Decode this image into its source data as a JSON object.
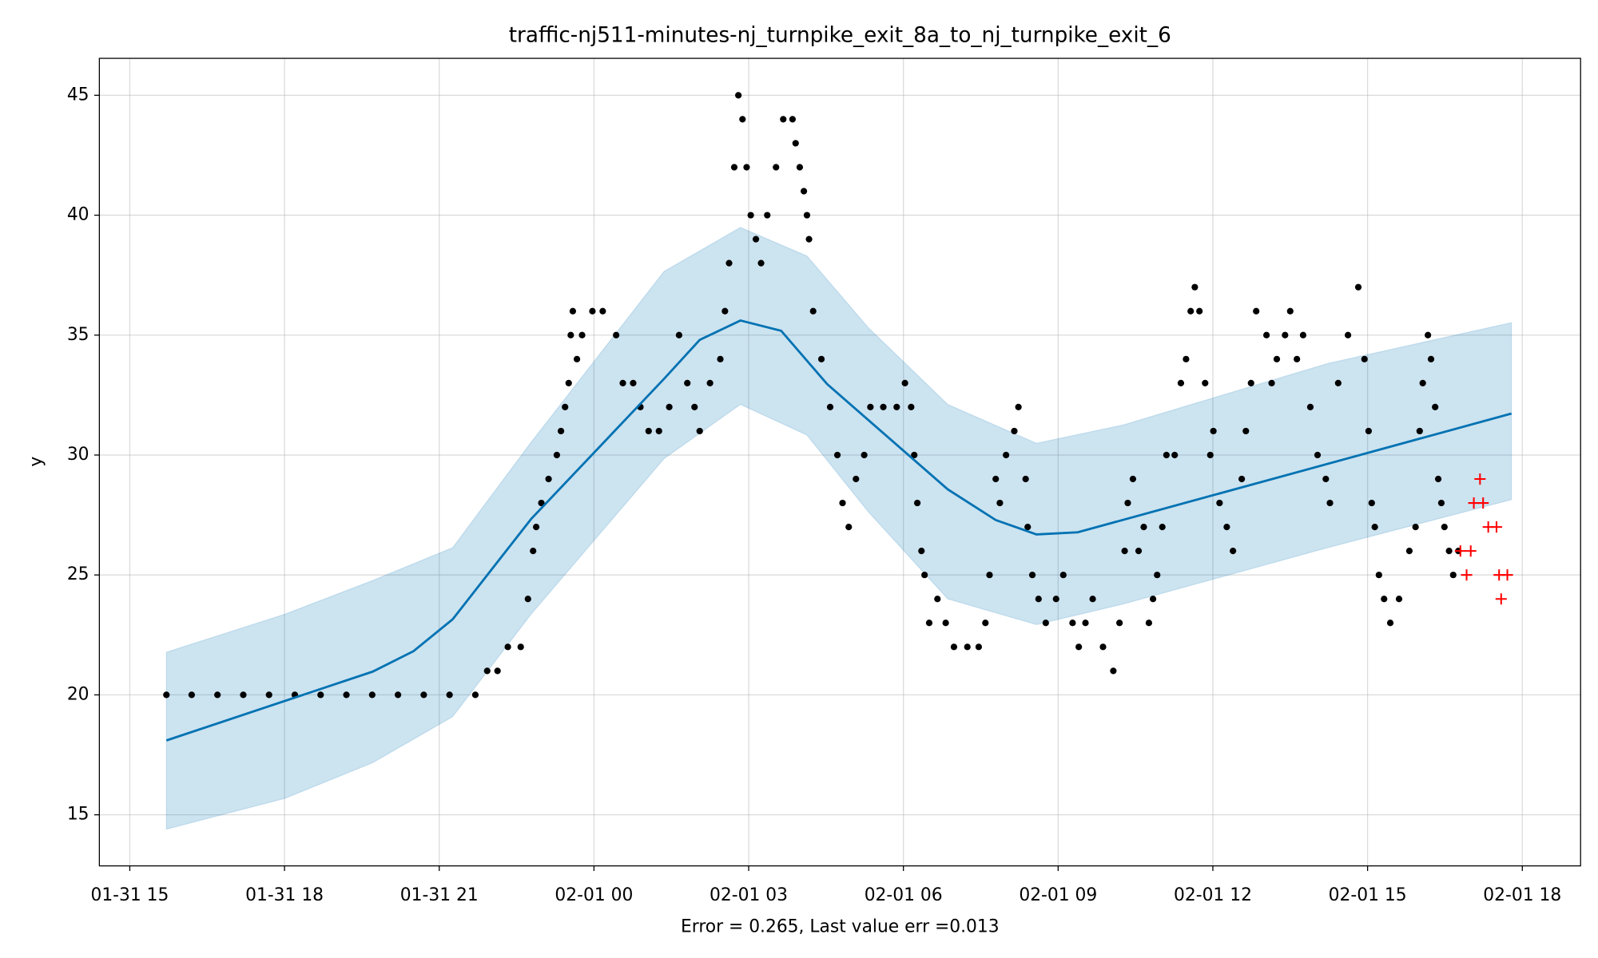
{
  "chart_data": {
    "type": "line",
    "title": "traffic-nj511-minutes-nj_turnpike_exit_8a_to_nj_turnpike_exit_6",
    "xlabel": "Error = 0.265, Last value err =0.013",
    "ylabel": "y",
    "grid": true,
    "xlim": [
      14.41,
      43.13
    ],
    "ylim": [
      12.87,
      46.54
    ],
    "xticks": [
      {
        "value": 15,
        "label": "01-31 15"
      },
      {
        "value": 18,
        "label": "01-31 18"
      },
      {
        "value": 21,
        "label": "01-31 21"
      },
      {
        "value": 24,
        "label": "02-01 00"
      },
      {
        "value": 27,
        "label": "02-01 03"
      },
      {
        "value": 30,
        "label": "02-01 06"
      },
      {
        "value": 33,
        "label": "02-01 09"
      },
      {
        "value": 36,
        "label": "02-01 12"
      },
      {
        "value": 39,
        "label": "02-01 15"
      },
      {
        "value": 42,
        "label": "02-01 18"
      }
    ],
    "yticks": [
      15,
      20,
      25,
      30,
      35,
      40,
      45
    ],
    "band": {
      "color": "#0072b2",
      "x": [
        15.71,
        18,
        19.71,
        21.26,
        22.78,
        25.36,
        26.84,
        28.13,
        29.32,
        30.86,
        32.58,
        34.27,
        38.23,
        41.79
      ],
      "upper": [
        21.78,
        23.36,
        24.77,
        26.14,
        30.53,
        37.66,
        39.49,
        38.3,
        35.31,
        32.11,
        30.49,
        31.26,
        33.82,
        35.52
      ],
      "lower": [
        14.4,
        15.68,
        17.17,
        19.09,
        23.36,
        29.85,
        32.11,
        30.83,
        27.63,
        24.0,
        22.93,
        23.79,
        26.14,
        28.14
      ]
    },
    "forecast": {
      "color": "#0072b2",
      "x": [
        15.71,
        19.71,
        20.5,
        21.26,
        22.78,
        25.36,
        26.05,
        26.84,
        27.63,
        28.52,
        30.86,
        31.79,
        32.58,
        33.38,
        41.79
      ],
      "values": [
        18.1,
        20.97,
        21.82,
        23.15,
        27.33,
        33.18,
        34.8,
        35.61,
        35.18,
        32.96,
        28.57,
        27.29,
        26.69,
        26.78,
        31.73
      ]
    },
    "observed": {
      "color": "#000000",
      "x": [
        15.71,
        16.2,
        16.7,
        17.2,
        17.7,
        18.2,
        18.7,
        19.2,
        19.7,
        20.2,
        20.7,
        21.2,
        21.7,
        21.93,
        22.13,
        22.33,
        22.58,
        22.72,
        22.82,
        22.88,
        22.98,
        23.12,
        23.28,
        23.36,
        23.44,
        23.51,
        23.55,
        23.59,
        23.67,
        23.77,
        23.97,
        24.17,
        24.43,
        24.56,
        24.76,
        24.9,
        25.06,
        25.26,
        25.46,
        25.65,
        25.81,
        25.95,
        26.05,
        26.25,
        26.45,
        26.54,
        26.62,
        26.72,
        26.8,
        26.88,
        26.96,
        27.04,
        27.14,
        27.24,
        27.36,
        27.53,
        27.67,
        27.85,
        27.91,
        27.99,
        28.07,
        28.13,
        28.17,
        28.25,
        28.41,
        28.58,
        28.72,
        28.82,
        28.94,
        29.08,
        29.24,
        29.36,
        29.61,
        29.87,
        30.03,
        30.15,
        30.21,
        30.27,
        30.35,
        30.41,
        30.5,
        30.66,
        30.82,
        30.98,
        31.24,
        31.46,
        31.59,
        31.67,
        31.79,
        31.87,
        31.99,
        32.15,
        32.23,
        32.37,
        32.41,
        32.5,
        32.62,
        32.76,
        32.96,
        33.1,
        33.28,
        33.4,
        33.53,
        33.67,
        33.87,
        34.07,
        34.19,
        34.29,
        34.35,
        34.45,
        34.56,
        34.66,
        34.76,
        34.84,
        34.92,
        35.02,
        35.1,
        35.26,
        35.38,
        35.48,
        35.57,
        35.65,
        35.74,
        35.85,
        35.95,
        36.01,
        36.13,
        36.27,
        36.39,
        36.56,
        36.64,
        36.74,
        36.84,
        37.04,
        37.14,
        37.24,
        37.4,
        37.5,
        37.63,
        37.75,
        37.89,
        38.03,
        38.19,
        38.27,
        38.43,
        38.62,
        38.82,
        38.94,
        39.02,
        39.08,
        39.14,
        39.22,
        39.32,
        39.44,
        39.61,
        39.81,
        39.93,
        40.01,
        40.07,
        40.17,
        40.23,
        40.31,
        40.37,
        40.43,
        40.49,
        40.58,
        40.66,
        40.76
      ],
      "values": [
        20,
        20,
        20,
        20,
        20,
        20,
        20,
        20,
        20,
        20,
        20,
        20,
        20,
        21,
        21,
        22,
        22,
        24,
        26,
        27,
        28,
        29,
        30,
        31,
        32,
        33,
        35,
        36,
        34,
        35,
        36,
        36,
        35,
        33,
        33,
        32,
        31,
        31,
        32,
        35,
        33,
        32,
        31,
        33,
        34,
        36,
        38,
        42,
        45,
        44,
        42,
        40,
        39,
        38,
        40,
        42,
        44,
        44,
        43,
        42,
        41,
        40,
        39,
        36,
        34,
        32,
        30,
        28,
        27,
        29,
        30,
        32,
        32,
        32,
        33,
        32,
        30,
        28,
        26,
        25,
        23,
        24,
        23,
        22,
        22,
        22,
        23,
        25,
        29,
        28,
        30,
        31,
        32,
        29,
        27,
        25,
        24,
        23,
        24,
        25,
        23,
        22,
        23,
        24,
        22,
        21,
        23,
        26,
        28,
        29,
        26,
        27,
        23,
        24,
        25,
        27,
        30,
        30,
        33,
        34,
        36,
        37,
        36,
        33,
        30,
        31,
        28,
        27,
        26,
        29,
        31,
        33,
        36,
        35,
        33,
        34,
        35,
        36,
        34,
        35,
        32,
        30,
        29,
        28,
        33,
        35,
        37,
        34,
        31,
        28,
        27,
        25,
        24,
        23,
        24,
        26,
        27,
        31,
        33,
        35,
        34,
        32,
        29,
        28,
        27,
        26,
        25,
        26
      ]
    },
    "future": {
      "color": "#ff0000",
      "x": [
        40.8,
        40.92,
        41,
        41.06,
        41.18,
        41.24,
        41.34,
        41.5,
        41.55,
        41.59,
        41.71
      ],
      "values": [
        26,
        25,
        26,
        28,
        29,
        28,
        27,
        27,
        25,
        24,
        25
      ]
    }
  }
}
